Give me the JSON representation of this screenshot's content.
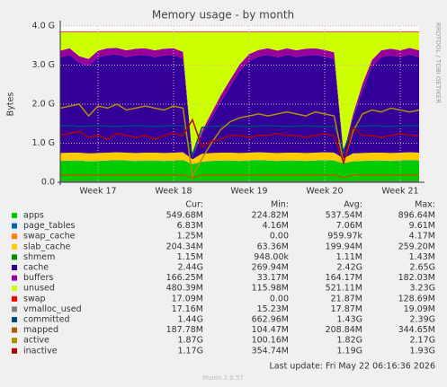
{
  "chart_data": {
    "type": "stacked_area_line",
    "title": "Memory usage - by month",
    "y_label": "Bytes",
    "side_label": "RRDTOOL / TOBI OETIKER",
    "footer": "Last update: Fri May 22 06:16:36 2026",
    "version": "Munin 2.0.57",
    "legend_headers": [
      "Cur:",
      "Min:",
      "Avg:",
      "Max:"
    ],
    "grid": true,
    "ylim": [
      0,
      4000000000.0
    ],
    "yticks": [
      {
        "value": 0,
        "label": "0.0"
      },
      {
        "value": 1000000000.0,
        "label": "1.0 G"
      },
      {
        "value": 2000000000.0,
        "label": "2.0 G"
      },
      {
        "value": 3000000000.0,
        "label": "3.0 G"
      },
      {
        "value": 4000000000.0,
        "label": "4.0 G"
      }
    ],
    "categories": [
      null,
      null,
      null,
      null,
      "Week 17",
      null,
      null,
      null,
      null,
      null,
      null,
      null,
      "Week 18",
      null,
      null,
      null,
      null,
      null,
      null,
      null,
      "Week 19",
      null,
      null,
      null,
      null,
      null,
      null,
      null,
      "Week 20",
      null,
      null,
      null,
      null,
      null,
      null,
      null,
      "Week 21",
      null,
      null
    ],
    "series": [
      {
        "name": "apps",
        "color": "#00CC00",
        "kind": "stack",
        "stats": [
          "549.68M",
          "224.82M",
          "537.54M",
          "896.64M"
        ],
        "values": [
          540000000.0,
          550000000.0,
          550000000.0,
          530000000.0,
          540000000.0,
          550000000.0,
          560000000.0,
          550000000.0,
          540000000.0,
          550000000.0,
          550000000.0,
          540000000.0,
          550000000.0,
          560000000.0,
          460000000.0,
          520000000.0,
          540000000.0,
          550000000.0,
          550000000.0,
          540000000.0,
          550000000.0,
          560000000.0,
          550000000.0,
          540000000.0,
          550000000.0,
          550000000.0,
          540000000.0,
          550000000.0,
          560000000.0,
          550000000.0,
          480000000.0,
          530000000.0,
          540000000.0,
          550000000.0,
          550000000.0,
          540000000.0,
          550000000.0,
          560000000.0,
          550000000.0
        ]
      },
      {
        "name": "page_tables",
        "color": "#0066B3",
        "kind": "stack",
        "stats": [
          "6.83M",
          "4.16M",
          "7.06M",
          "9.61M"
        ],
        "values": [
          7000000.0,
          7000000.0,
          7000000.0,
          7000000.0,
          7000000.0,
          7000000.0,
          7000000.0,
          7000000.0,
          7000000.0,
          7000000.0,
          7000000.0,
          7000000.0,
          7000000.0,
          7000000.0,
          7000000.0,
          7000000.0,
          7000000.0,
          7000000.0,
          7000000.0,
          7000000.0,
          7000000.0,
          7000000.0,
          7000000.0,
          7000000.0,
          7000000.0,
          7000000.0,
          7000000.0,
          7000000.0,
          7000000.0,
          7000000.0,
          7000000.0,
          7000000.0,
          7000000.0,
          7000000.0,
          7000000.0,
          7000000.0,
          7000000.0,
          7000000.0,
          7000000.0
        ]
      },
      {
        "name": "swap_cache",
        "color": "#FF8000",
        "kind": "stack",
        "stats": [
          "1.25M",
          "0.00",
          "959.97k",
          "4.17M"
        ],
        "values": [
          1200000.0,
          1200000.0,
          1200000.0,
          1200000.0,
          1200000.0,
          1200000.0,
          1200000.0,
          1200000.0,
          1200000.0,
          1200000.0,
          1200000.0,
          1200000.0,
          1200000.0,
          1200000.0,
          1200000.0,
          1200000.0,
          1200000.0,
          1200000.0,
          1200000.0,
          1200000.0,
          1200000.0,
          1200000.0,
          1200000.0,
          1200000.0,
          1200000.0,
          1200000.0,
          1200000.0,
          1200000.0,
          1200000.0,
          1200000.0,
          1200000.0,
          1200000.0,
          1200000.0,
          1200000.0,
          1200000.0,
          1200000.0,
          1200000.0,
          1200000.0,
          1200000.0
        ]
      },
      {
        "name": "slab_cache",
        "color": "#FFCC00",
        "kind": "stack",
        "stats": [
          "204.34M",
          "63.36M",
          "199.94M",
          "259.20M"
        ],
        "values": [
          200000000.0,
          200000000.0,
          200000000.0,
          200000000.0,
          200000000.0,
          200000000.0,
          200000000.0,
          200000000.0,
          200000000.0,
          200000000.0,
          200000000.0,
          200000000.0,
          200000000.0,
          200000000.0,
          120000000.0,
          200000000.0,
          200000000.0,
          200000000.0,
          200000000.0,
          200000000.0,
          200000000.0,
          200000000.0,
          200000000.0,
          200000000.0,
          200000000.0,
          200000000.0,
          200000000.0,
          200000000.0,
          200000000.0,
          200000000.0,
          120000000.0,
          200000000.0,
          200000000.0,
          200000000.0,
          200000000.0,
          200000000.0,
          200000000.0,
          200000000.0,
          200000000.0
        ]
      },
      {
        "name": "shmem",
        "color": "#008F00",
        "kind": "stack",
        "stats": [
          "1.15M",
          "948.00k",
          "1.11M",
          "1.43M"
        ],
        "values": [
          1200000.0,
          1200000.0,
          1200000.0,
          1200000.0,
          1200000.0,
          1200000.0,
          1200000.0,
          1200000.0,
          1200000.0,
          1200000.0,
          1200000.0,
          1200000.0,
          1200000.0,
          1200000.0,
          1200000.0,
          1200000.0,
          1200000.0,
          1200000.0,
          1200000.0,
          1200000.0,
          1200000.0,
          1200000.0,
          1200000.0,
          1200000.0,
          1200000.0,
          1200000.0,
          1200000.0,
          1200000.0,
          1200000.0,
          1200000.0,
          1200000.0,
          1200000.0,
          1200000.0,
          1200000.0,
          1200000.0,
          1200000.0,
          1200000.0,
          1200000.0,
          1200000.0
        ]
      },
      {
        "name": "cache",
        "color": "#330099",
        "kind": "stack",
        "stats": [
          "2.44G",
          "269.94M",
          "2.42G",
          "2.65G"
        ],
        "values": [
          2450000000.0,
          2500000000.0,
          2300000000.0,
          2250000000.0,
          2450000000.0,
          2500000000.0,
          2500000000.0,
          2450000000.0,
          2500000000.0,
          2500000000.0,
          2450000000.0,
          2500000000.0,
          2500000000.0,
          2400000000.0,
          50000000.0,
          500000000.0,
          900000000.0,
          1300000000.0,
          1700000000.0,
          2100000000.0,
          2350000000.0,
          2450000000.0,
          2500000000.0,
          2450000000.0,
          2500000000.0,
          2450000000.0,
          2500000000.0,
          2500000000.0,
          2450000000.0,
          2400000000.0,
          100000000.0,
          900000000.0,
          1600000000.0,
          2200000000.0,
          2450000000.0,
          2500000000.0,
          2450000000.0,
          2500000000.0,
          2450000000.0
        ]
      },
      {
        "name": "buffers",
        "color": "#990099",
        "kind": "stack",
        "stats": [
          "166.25M",
          "33.17M",
          "164.17M",
          "182.03M"
        ],
        "values": [
          170000000.0,
          170000000.0,
          170000000.0,
          170000000.0,
          170000000.0,
          170000000.0,
          170000000.0,
          170000000.0,
          170000000.0,
          170000000.0,
          170000000.0,
          170000000.0,
          170000000.0,
          170000000.0,
          30000000.0,
          80000000.0,
          120000000.0,
          170000000.0,
          170000000.0,
          170000000.0,
          170000000.0,
          170000000.0,
          170000000.0,
          170000000.0,
          170000000.0,
          170000000.0,
          170000000.0,
          170000000.0,
          170000000.0,
          170000000.0,
          40000000.0,
          100000000.0,
          170000000.0,
          170000000.0,
          170000000.0,
          170000000.0,
          170000000.0,
          170000000.0,
          170000000.0
        ]
      },
      {
        "name": "unused",
        "color": "#CCFF00",
        "kind": "stack",
        "stats": [
          "480.39M",
          "115.98M",
          "521.11M",
          "3.23G"
        ],
        "values": [
          470000000.0,
          410000000.0,
          610000000.0,
          680000000.0,
          470000000.0,
          410000000.0,
          400000000.0,
          460000000.0,
          420000000.0,
          410000000.0,
          460000000.0,
          420000000.0,
          410000000.0,
          500000000.0,
          3170000000.0,
          2530000000.0,
          2070000000.0,
          1610000000.0,
          1210000000.0,
          820000000.0,
          560000000.0,
          450000000.0,
          410000000.0,
          470000000.0,
          410000000.0,
          460000000.0,
          420000000.0,
          410000000.0,
          450000000.0,
          510000000.0,
          3090000000.0,
          2100000000.0,
          1320000000.0,
          710000000.0,
          460000000.0,
          420000000.0,
          460000000.0,
          400000000.0,
          460000000.0
        ]
      },
      {
        "name": "swap",
        "color": "#FF0000",
        "kind": "stack",
        "stats": [
          "17.09M",
          "0.00",
          "21.87M",
          "128.69M"
        ],
        "values": [
          17000000.0,
          17000000.0,
          17000000.0,
          17000000.0,
          17000000.0,
          17000000.0,
          17000000.0,
          17000000.0,
          17000000.0,
          17000000.0,
          17000000.0,
          17000000.0,
          17000000.0,
          17000000.0,
          17000000.0,
          17000000.0,
          17000000.0,
          17000000.0,
          17000000.0,
          17000000.0,
          17000000.0,
          17000000.0,
          17000000.0,
          17000000.0,
          17000000.0,
          17000000.0,
          17000000.0,
          17000000.0,
          17000000.0,
          17000000.0,
          17000000.0,
          17000000.0,
          17000000.0,
          17000000.0,
          17000000.0,
          17000000.0,
          17000000.0,
          17000000.0,
          17000000.0
        ]
      },
      {
        "name": "vmalloc_used",
        "color": "#808080",
        "kind": "line",
        "stats": [
          "17.16M",
          "15.23M",
          "17.87M",
          "19.09M"
        ],
        "values": [
          17000000.0,
          17000000.0,
          17000000.0,
          17000000.0,
          17000000.0,
          17000000.0,
          17000000.0,
          17000000.0,
          17000000.0,
          17000000.0,
          17000000.0,
          17000000.0,
          17000000.0,
          17000000.0,
          17000000.0,
          17000000.0,
          17000000.0,
          17000000.0,
          17000000.0,
          17000000.0,
          17000000.0,
          17000000.0,
          17000000.0,
          17000000.0,
          17000000.0,
          17000000.0,
          17000000.0,
          17000000.0,
          17000000.0,
          17000000.0,
          17000000.0,
          17000000.0,
          17000000.0,
          17000000.0,
          17000000.0,
          17000000.0,
          17000000.0,
          17000000.0,
          17000000.0
        ]
      },
      {
        "name": "committed",
        "color": "#00487D",
        "kind": "line",
        "stats": [
          "1.44G",
          "662.96M",
          "1.43G",
          "2.39G"
        ],
        "values": [
          1440000000.0,
          1450000000.0,
          1430000000.0,
          1440000000.0,
          1450000000.0,
          1440000000.0,
          1430000000.0,
          1440000000.0,
          1450000000.0,
          1440000000.0,
          1430000000.0,
          1440000000.0,
          1450000000.0,
          1440000000.0,
          700000000.0,
          1400000000.0,
          1430000000.0,
          1440000000.0,
          1450000000.0,
          1440000000.0,
          1430000000.0,
          1440000000.0,
          1450000000.0,
          1440000000.0,
          1430000000.0,
          1440000000.0,
          1450000000.0,
          1440000000.0,
          1430000000.0,
          1440000000.0,
          800000000.0,
          1420000000.0,
          1440000000.0,
          1450000000.0,
          1440000000.0,
          1430000000.0,
          1440000000.0,
          1450000000.0,
          1440000000.0
        ]
      },
      {
        "name": "mapped",
        "color": "#B35A00",
        "kind": "line",
        "stats": [
          "187.78M",
          "104.47M",
          "208.84M",
          "344.65M"
        ],
        "values": [
          190000000.0,
          190000000.0,
          190000000.0,
          190000000.0,
          190000000.0,
          190000000.0,
          190000000.0,
          190000000.0,
          190000000.0,
          190000000.0,
          190000000.0,
          190000000.0,
          190000000.0,
          190000000.0,
          110000000.0,
          190000000.0,
          190000000.0,
          190000000.0,
          190000000.0,
          190000000.0,
          190000000.0,
          190000000.0,
          190000000.0,
          190000000.0,
          190000000.0,
          190000000.0,
          190000000.0,
          190000000.0,
          190000000.0,
          190000000.0,
          120000000.0,
          190000000.0,
          190000000.0,
          190000000.0,
          190000000.0,
          190000000.0,
          190000000.0,
          190000000.0,
          190000000.0
        ]
      },
      {
        "name": "active",
        "color": "#B38F00",
        "kind": "line",
        "stats": [
          "1.87G",
          "100.16M",
          "1.82G",
          "2.17G"
        ],
        "values": [
          1900000000.0,
          1950000000.0,
          2000000000.0,
          1700000000.0,
          1950000000.0,
          1900000000.0,
          2000000000.0,
          1850000000.0,
          1900000000.0,
          1950000000.0,
          1900000000.0,
          1850000000.0,
          1950000000.0,
          1900000000.0,
          150000000.0,
          600000000.0,
          1000000000.0,
          1350000000.0,
          1550000000.0,
          1650000000.0,
          1700000000.0,
          1750000000.0,
          1700000000.0,
          1750000000.0,
          1800000000.0,
          1750000000.0,
          1700000000.0,
          1800000000.0,
          1750000000.0,
          1700000000.0,
          500000000.0,
          1300000000.0,
          1750000000.0,
          1850000000.0,
          1800000000.0,
          1900000000.0,
          1850000000.0,
          1800000000.0,
          1850000000.0
        ]
      },
      {
        "name": "inactive",
        "color": "#B30000",
        "kind": "line",
        "stats": [
          "1.17G",
          "354.74M",
          "1.19G",
          "1.93G"
        ],
        "values": [
          1200000000.0,
          1250000000.0,
          1300000000.0,
          1150000000.0,
          1200000000.0,
          1100000000.0,
          1250000000.0,
          1200000000.0,
          1150000000.0,
          1200000000.0,
          1100000000.0,
          1200000000.0,
          1250000000.0,
          1200000000.0,
          1600000000.0,
          900000000.0,
          1050000000.0,
          1100000000.0,
          1200000000.0,
          1200000000.0,
          1150000000.0,
          1200000000.0,
          1200000000.0,
          1250000000.0,
          1200000000.0,
          1200000000.0,
          1150000000.0,
          1200000000.0,
          1250000000.0,
          1200000000.0,
          500000000.0,
          1400000000.0,
          1200000000.0,
          1200000000.0,
          1150000000.0,
          1200000000.0,
          1250000000.0,
          1200000000.0,
          1200000000.0
        ]
      }
    ]
  }
}
